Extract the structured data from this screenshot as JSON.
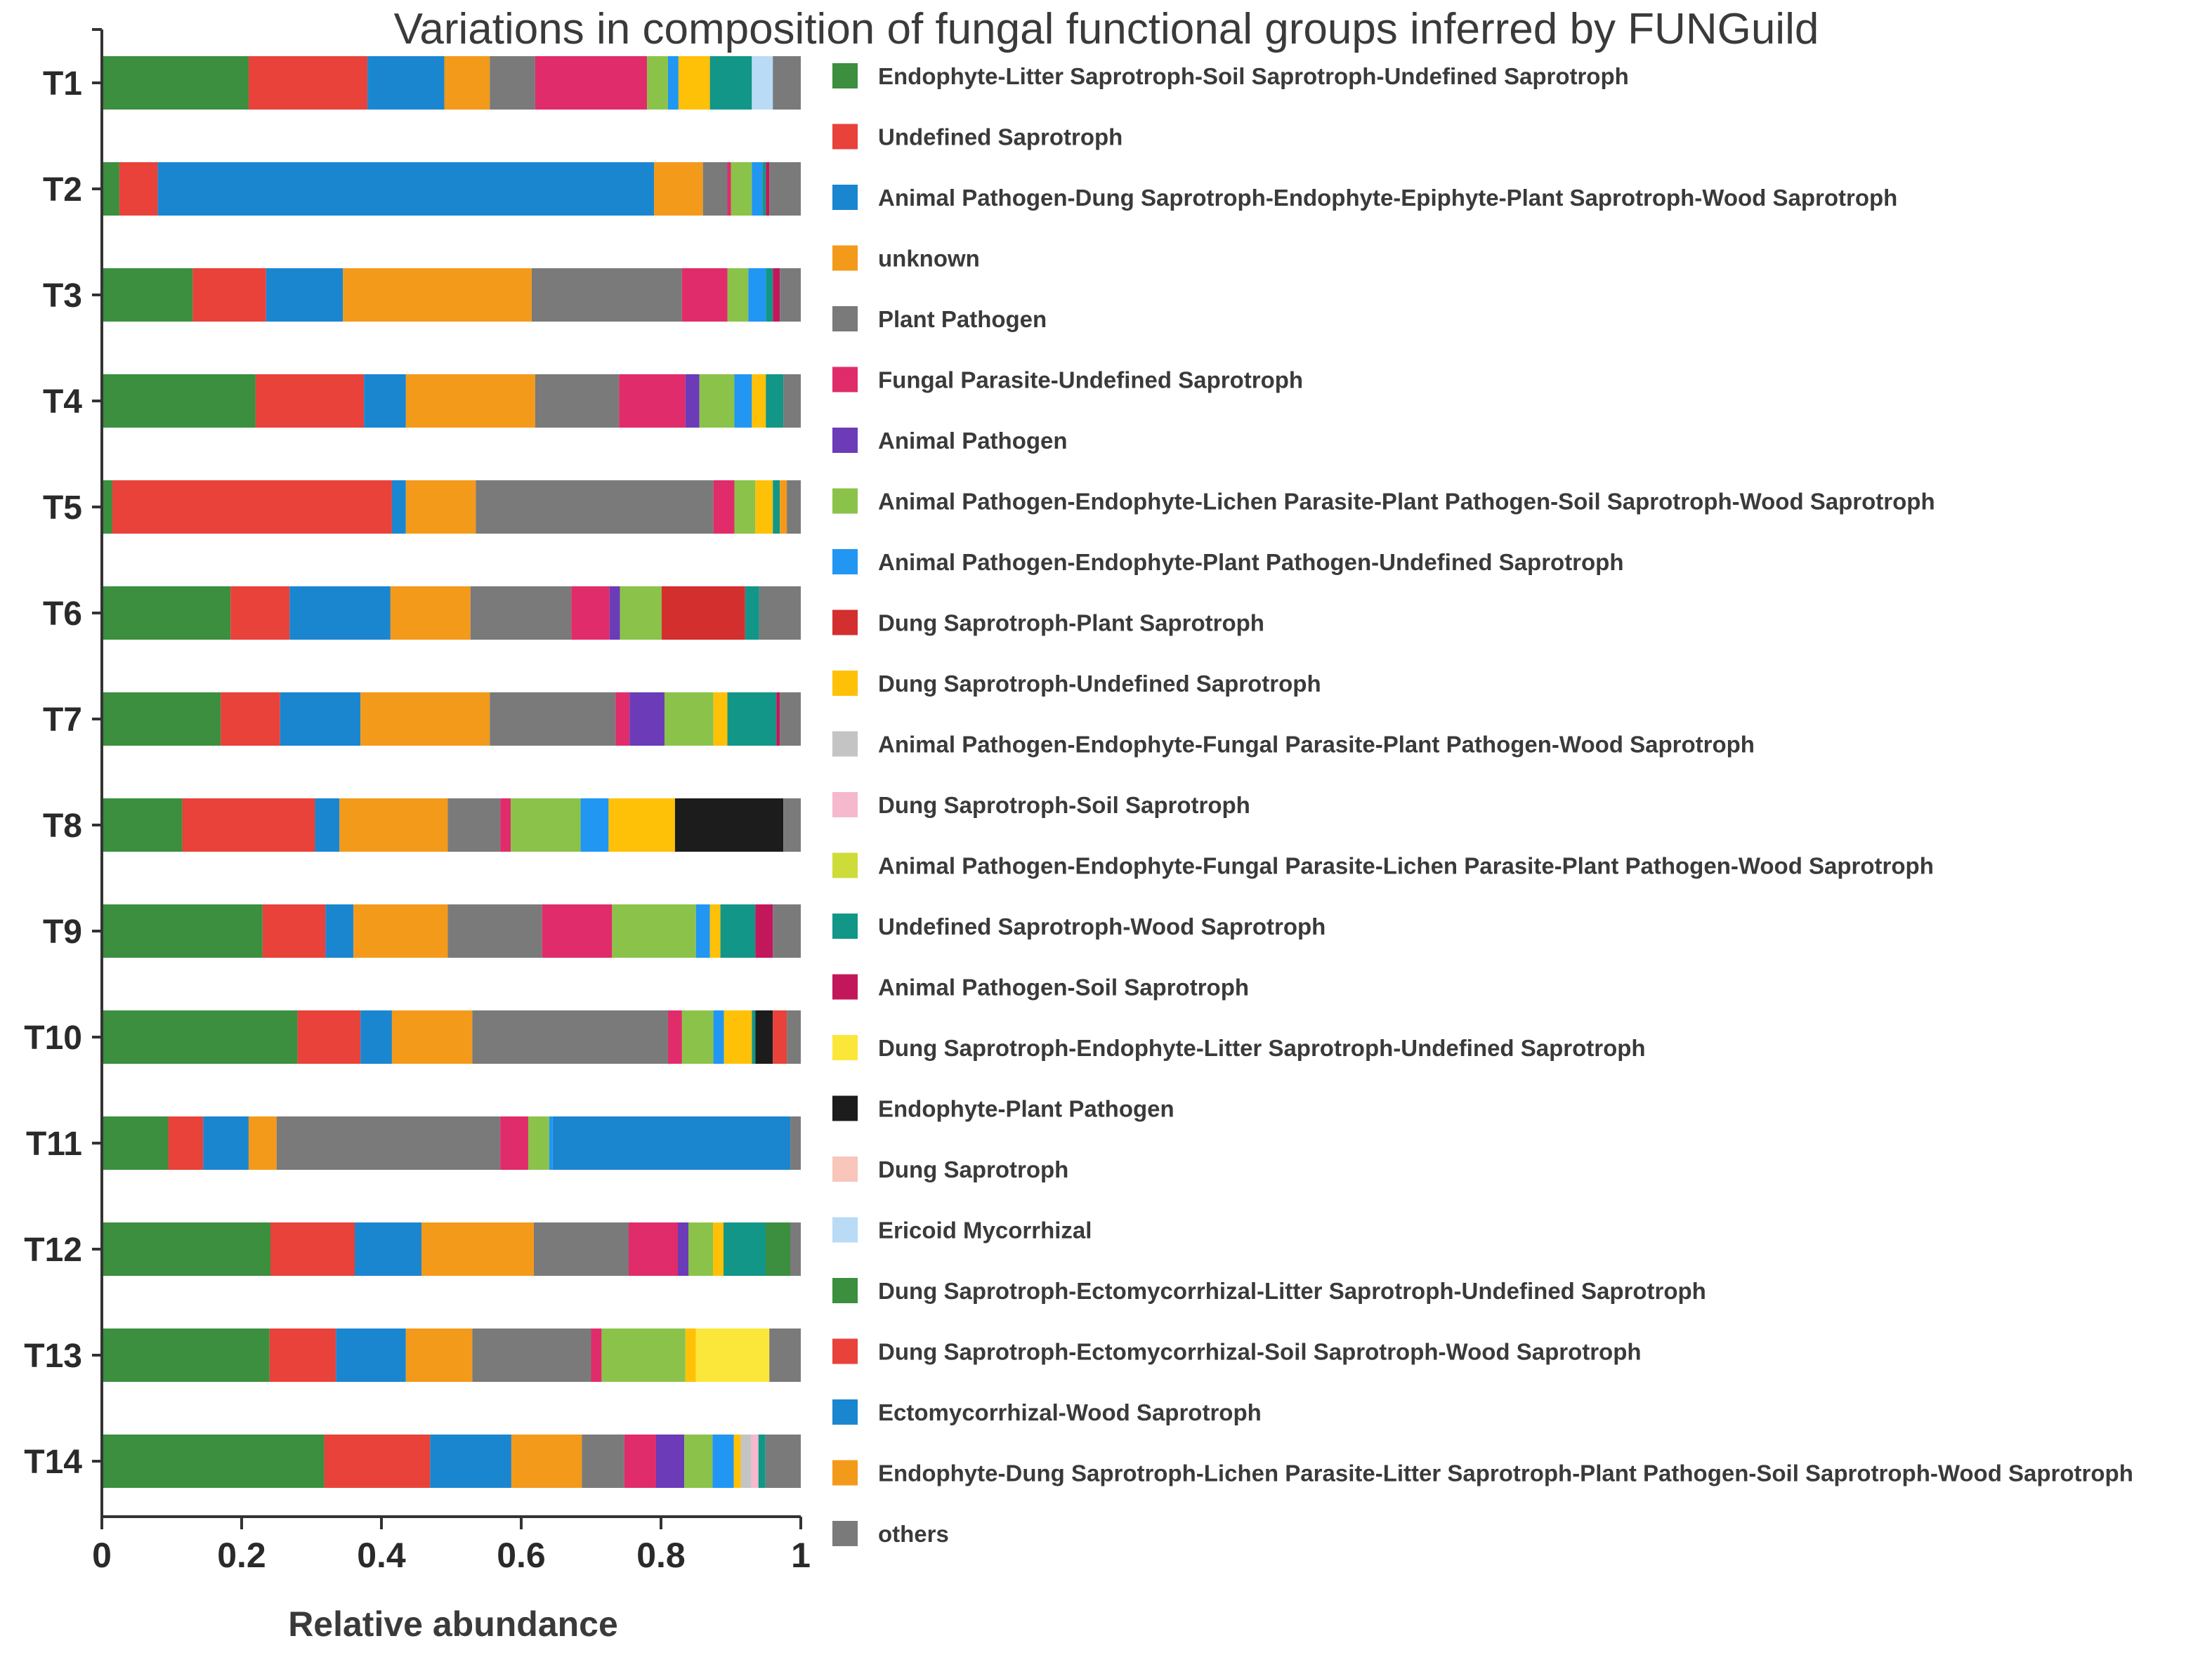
{
  "chart_data": {
    "type": "bar",
    "orientation": "horizontal",
    "stacked": true,
    "title": "Variations in composition of fungal functional groups inferred by FUNGuild",
    "xlabel": "Relative abundance",
    "ylabel": "",
    "xlim": [
      0,
      1
    ],
    "xticks": [
      "0",
      "0.2",
      "0.4",
      "0.6",
      "0.8",
      "1"
    ],
    "legend_position": "right",
    "categories": [
      "T1",
      "T2",
      "T3",
      "T4",
      "T5",
      "T6",
      "T7",
      "T8",
      "T9",
      "T10",
      "T11",
      "T12",
      "T13",
      "T14"
    ],
    "series": [
      {
        "name": "Endophyte-Litter Saprotroph-Soil Saprotroph-Undefined Saprotroph",
        "color": "#3b8f3e",
        "values": [
          0.21,
          0.025,
          0.13,
          0.22,
          0.015,
          0.185,
          0.17,
          0.115,
          0.23,
          0.28,
          0.095,
          0.24,
          0.24,
          0.315
        ]
      },
      {
        "name": "Undefined Saprotroph",
        "color": "#e8423a",
        "values": [
          0.17,
          0.055,
          0.105,
          0.155,
          0.4,
          0.085,
          0.085,
          0.19,
          0.09,
          0.09,
          0.05,
          0.12,
          0.095,
          0.15
        ]
      },
      {
        "name": "Animal Pathogen-Dung Saprotroph-Endophyte-Epiphyte-Plant Saprotroph-Wood Saprotroph",
        "color": "#1b86d0",
        "values": [
          0.11,
          0.71,
          0.11,
          0.06,
          0.02,
          0.145,
          0.115,
          0.035,
          0.04,
          0.045,
          0.065,
          0.095,
          0.1,
          0.115
        ]
      },
      {
        "name": "unknown",
        "color": "#f39a1a",
        "values": [
          0.065,
          0.07,
          0.27,
          0.185,
          0.1,
          0.115,
          0.185,
          0.155,
          0.135,
          0.115,
          0.04,
          0.16,
          0.095,
          0.1
        ]
      },
      {
        "name": "Plant Pathogen",
        "color": "#7a7a7a",
        "values": [
          0.065,
          0.035,
          0.215,
          0.12,
          0.34,
          0.145,
          0.18,
          0.075,
          0.135,
          0.28,
          0.32,
          0.135,
          0.17,
          0.06
        ]
      },
      {
        "name": "Fungal Parasite-Undefined Saprotroph",
        "color": "#e02c6b",
        "values": [
          0.16,
          0.005,
          0.065,
          0.095,
          0.03,
          0.055,
          0.02,
          0.015,
          0.1,
          0.02,
          0.04,
          0.07,
          0.015,
          0.045
        ]
      },
      {
        "name": "Animal Pathogen",
        "color": "#6b3bb8",
        "values": [
          0.0,
          0.0,
          0.0,
          0.02,
          0.0,
          0.015,
          0.05,
          0.0,
          0.0,
          0.0,
          0.0,
          0.015,
          0.0,
          0.04
        ]
      },
      {
        "name": "Animal Pathogen-Endophyte-Lichen Parasite-Plant Pathogen-Soil Saprotroph-Wood Saprotroph",
        "color": "#8bc34a",
        "values": [
          0.03,
          0.03,
          0.03,
          0.05,
          0.03,
          0.06,
          0.07,
          0.1,
          0.12,
          0.045,
          0.03,
          0.035,
          0.12,
          0.04
        ]
      },
      {
        "name": "Animal Pathogen-Endophyte-Plant Pathogen-Undefined Saprotroph",
        "color": "#2196f3",
        "values": [
          0.015,
          0.015,
          0.025,
          0.025,
          0.0,
          0.0,
          0.0,
          0.04,
          0.02,
          0.015,
          0.005,
          0.0,
          0.0,
          0.03
        ]
      },
      {
        "name": "Dung Saprotroph-Plant Saprotroph",
        "color": "#d32f2f",
        "values": [
          0.0,
          0.0,
          0.0,
          0.0,
          0.0,
          0.12,
          0.0,
          0.0,
          0.0,
          0.0,
          0.0,
          0.0,
          0.0,
          0.0
        ]
      },
      {
        "name": "Dung Saprotroph-Undefined Saprotroph",
        "color": "#ffc107",
        "values": [
          0.045,
          0.0,
          0.0,
          0.02,
          0.025,
          0.0,
          0.02,
          0.095,
          0.015,
          0.04,
          0.0,
          0.015,
          0.015,
          0.01
        ]
      },
      {
        "name": "Animal Pathogen-Endophyte-Fungal Parasite-Plant Pathogen-Wood Saprotroph",
        "color": "#c4c4c4",
        "values": [
          0.0,
          0.0,
          0.0,
          0.0,
          0.0,
          0.0,
          0.0,
          0.0,
          0.0,
          0.0,
          0.0,
          0.0,
          0.0,
          0.015
        ]
      },
      {
        "name": "Dung Saprotroph-Soil Saprotroph",
        "color": "#f6b8cc",
        "values": [
          0.0,
          0.0,
          0.0,
          0.0,
          0.0,
          0.0,
          0.0,
          0.0,
          0.0,
          0.0,
          0.0,
          0.0,
          0.0,
          0.01
        ]
      },
      {
        "name": "Animal Pathogen-Endophyte-Fungal Parasite-Lichen Parasite-Plant Pathogen-Wood Saprotroph",
        "color": "#cddc39",
        "values": [
          0.0,
          0.0,
          0.0,
          0.0,
          0.0,
          0.0,
          0.0,
          0.0,
          0.0,
          0.0,
          0.0,
          0.0,
          0.0,
          0.0
        ]
      },
      {
        "name": "Undefined Saprotroph-Wood Saprotroph",
        "color": "#129688",
        "values": [
          0.06,
          0.005,
          0.01,
          0.025,
          0.01,
          0.02,
          0.07,
          0.0,
          0.05,
          0.005,
          0.0,
          0.06,
          0.0,
          0.01
        ]
      },
      {
        "name": "Animal Pathogen-Soil Saprotroph",
        "color": "#c2185b",
        "values": [
          0.0,
          0.005,
          0.01,
          0.0,
          0.0,
          0.0,
          0.005,
          0.0,
          0.025,
          0.0,
          0.0,
          0.0,
          0.0,
          0.0
        ]
      },
      {
        "name": "Dung Saprotroph-Endophyte-Litter Saprotroph-Undefined Saprotroph",
        "color": "#fbe73a",
        "values": [
          0.0,
          0.0,
          0.0,
          0.0,
          0.0,
          0.0,
          0.0,
          0.0,
          0.0,
          0.0,
          0.0,
          0.0,
          0.105,
          0.0
        ]
      },
      {
        "name": "Endophyte-Plant Pathogen",
        "color": "#1c1c1c",
        "values": [
          0.0,
          0.0,
          0.0,
          0.0,
          0.0,
          0.0,
          0.0,
          0.155,
          0.0,
          0.025,
          0.0,
          0.0,
          0.0,
          0.0
        ]
      },
      {
        "name": "Dung Saprotroph",
        "color": "#f8c6ba",
        "values": [
          0.0,
          0.0,
          0.0,
          0.0,
          0.0,
          0.0,
          0.0,
          0.0,
          0.0,
          0.0,
          0.0,
          0.0,
          0.0,
          0.0
        ]
      },
      {
        "name": "Ericoid Mycorrhizal",
        "color": "#b9dbf5",
        "values": [
          0.03,
          0.0,
          0.0,
          0.0,
          0.0,
          0.0,
          0.0,
          0.0,
          0.0,
          0.0,
          0.0,
          0.0,
          0.0,
          0.0
        ]
      },
      {
        "name": "Dung Saprotroph-Ectomycorrhizal-Litter Saprotroph-Undefined Saprotroph",
        "color": "#3b8f3e",
        "values": [
          0.0,
          0.0,
          0.0,
          0.0,
          0.0,
          0.0,
          0.0,
          0.0,
          0.0,
          0.0,
          0.0,
          0.035,
          0.0,
          0.0
        ]
      },
      {
        "name": "Dung Saprotroph-Ectomycorrhizal-Soil Saprotroph-Wood Saprotroph",
        "color": "#e8423a",
        "values": [
          0.0,
          0.0,
          0.0,
          0.0,
          0.0,
          0.0,
          0.0,
          0.0,
          0.0,
          0.02,
          0.0,
          0.0,
          0.0,
          0.0
        ]
      },
      {
        "name": "Ectomycorrhizal-Wood Saprotroph",
        "color": "#1b86d0",
        "values": [
          0.0,
          0.0,
          0.0,
          0.0,
          0.0,
          0.0,
          0.0,
          0.0,
          0.0,
          0.0,
          0.34,
          0.0,
          0.0,
          0.0
        ]
      },
      {
        "name": "Endophyte-Dung Saprotroph-Lichen Parasite-Litter Saprotroph-Plant Pathogen-Soil Saprotroph-Wood Saprotroph",
        "color": "#f39a1a",
        "values": [
          0.0,
          0.0,
          0.0,
          0.0,
          0.01,
          0.0,
          0.0,
          0.0,
          0.0,
          0.0,
          0.0,
          0.0,
          0.0,
          0.0
        ]
      },
      {
        "name": "others",
        "color": "#7a7a7a",
        "values": [
          0.04,
          0.045,
          0.03,
          0.025,
          0.02,
          0.06,
          0.03,
          0.025,
          0.04,
          0.02,
          0.015,
          0.015,
          0.045,
          0.05
        ]
      }
    ]
  }
}
